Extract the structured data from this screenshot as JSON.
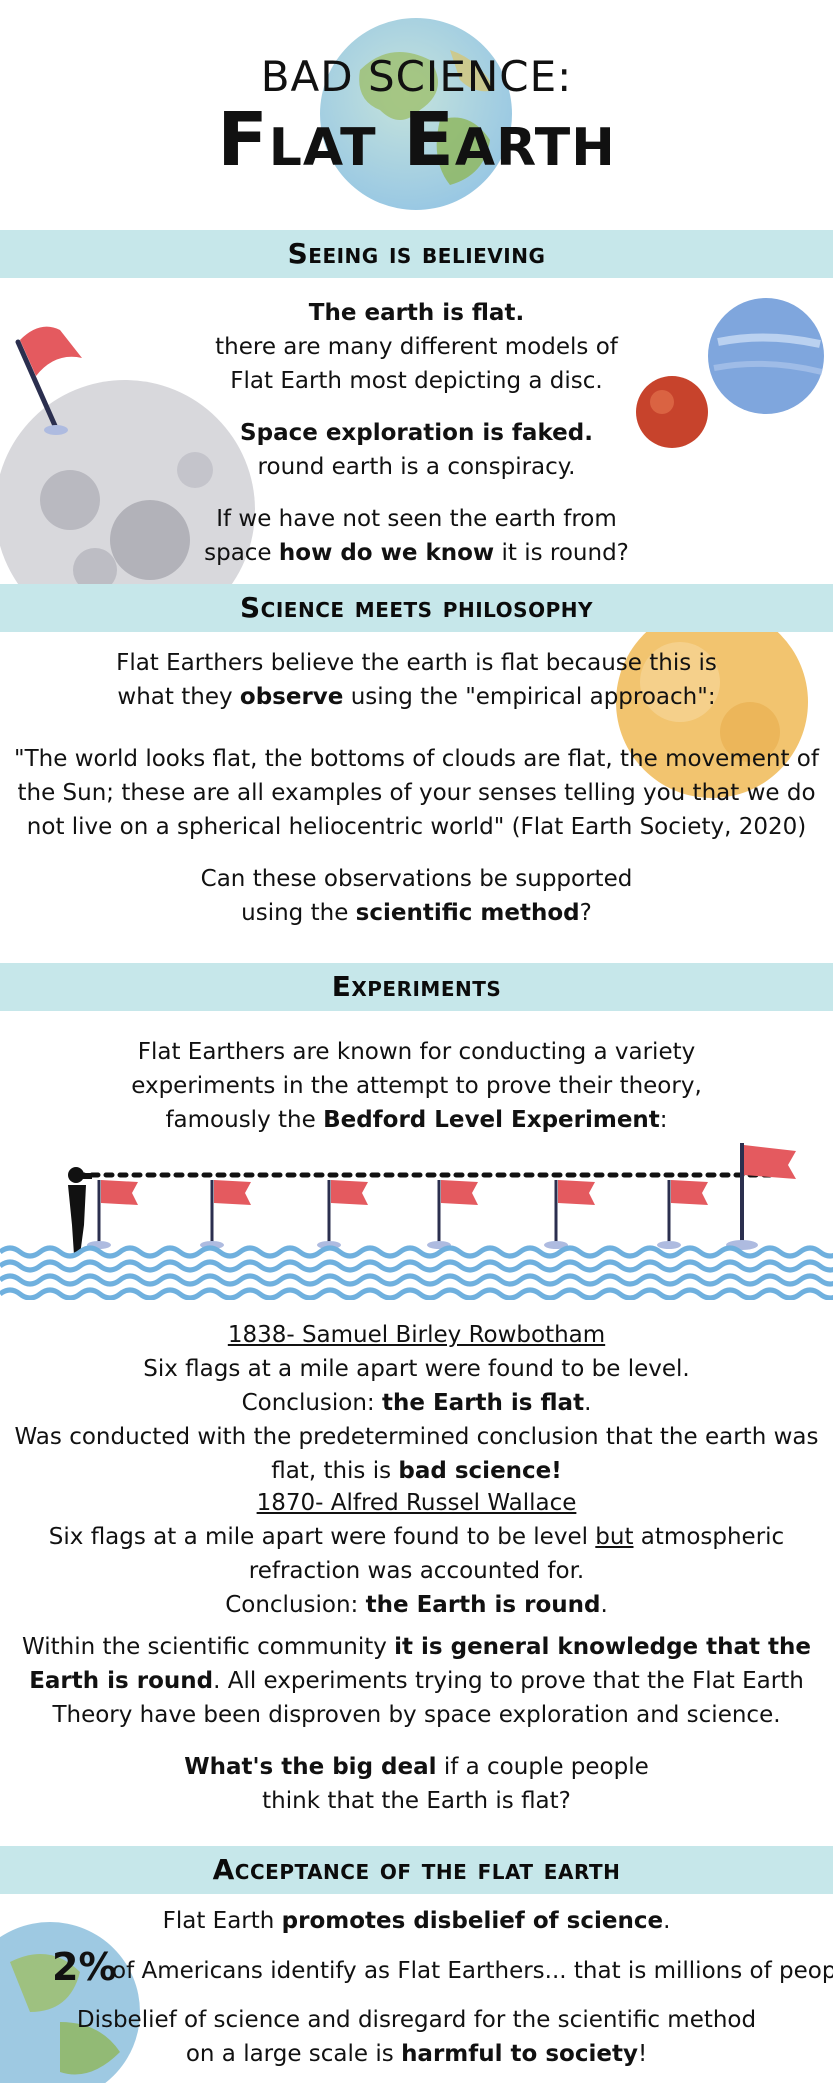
{
  "header": {
    "line1": "BAD SCIENCE:",
    "line2": "Flat Earth"
  },
  "sections": {
    "seeing": {
      "title": "Seeing is believing",
      "p1_bold": "The earth is flat.",
      "p1_a": "there are many different models of",
      "p1_b": "Flat Earth most depicting a disc.",
      "p2_bold": "Space exploration is faked.",
      "p2_a": "round earth is a conspiracy.",
      "p3_a": "If we have not seen the earth from",
      "p3_b_pre": "space ",
      "p3_b_bold": "how do we know",
      "p3_b_post": " it is round?"
    },
    "philosophy": {
      "title": "Science meets philosophy",
      "p1_a": "Flat Earthers believe the earth is flat because this is",
      "p1_b_pre": "what they ",
      "p1_b_bold": "observe",
      "p1_b_post": " using the \"empirical approach\":",
      "quote_a": "\"The world looks flat, the bottoms of clouds are flat, the movement of",
      "quote_b": "the Sun; these are all examples of your senses telling you that we do",
      "quote_c": "not live on a spherical heliocentric world\" (Flat Earth Society, 2020)",
      "q_a": "Can these observations be supported",
      "q_b_pre": "using the ",
      "q_b_bold": "scientific method",
      "q_b_post": "?"
    },
    "experiments": {
      "title": "Experiments",
      "intro_a": "Flat Earthers are known for conducting a variety",
      "intro_b": "experiments in the attempt to prove their theory,",
      "intro_c_pre": "famously the ",
      "intro_c_bold": "Bedford Level Experiment",
      "intro_c_post": ":",
      "exp1_head": "1838- Samuel Birley Rowbotham",
      "exp1_a": "Six flags at a mile apart were found to be level.",
      "exp1_b_pre": "Conclusion:  ",
      "exp1_b_bold": "the Earth is flat",
      "exp1_b_post": ".",
      "exp1_c": "Was conducted with the predetermined conclusion that the earth was",
      "exp1_d_pre": "flat, this is ",
      "exp1_d_bold": "bad science!",
      "exp2_head": "1870- Alfred Russel Wallace",
      "exp2_a_pre": "Six flags at a mile apart were found to be level ",
      "exp2_a_u": "but",
      "exp2_a_post": " atmospheric",
      "exp2_b": "refraction was accounted for.",
      "exp2_c_pre": "Conclusion:  ",
      "exp2_c_bold": "the Earth is round",
      "exp2_c_post": ".",
      "sum_a_pre": "Within the scientific community ",
      "sum_a_bold": "it is general knowledge that the",
      "sum_b_bold": "Earth is round",
      "sum_b_post": ". All experiments trying to prove that the Flat Earth",
      "sum_c": "Theory have been disproven by space exploration and science.",
      "deal_a_bold": "What's the big deal",
      "deal_a_post": " if a couple people",
      "deal_b": "think that the Earth is flat?"
    },
    "acceptance": {
      "title": "Acceptance of the flat earth",
      "p1_pre": "Flat Earth ",
      "p1_bold": "promotes disbelief of science",
      "p1_post": ".",
      "stat_value": "2%",
      "stat_text": "of Americans identify as Flat Earthers... that is millions of people!",
      "p3_a": "Disbelief of science and disregard for the scientific method",
      "p3_b_pre": "on a large scale is ",
      "p3_b_bold": "harmful to society",
      "p3_b_post": "!"
    }
  },
  "colors": {
    "banner": "#c6e7ea",
    "flag": "#e45a5f",
    "water": "#6fb0de",
    "pole": "#2b2f4f"
  }
}
